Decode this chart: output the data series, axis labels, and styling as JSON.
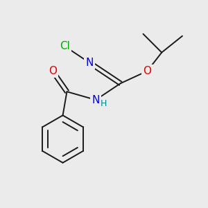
{
  "background_color": "#ebebeb",
  "bond_color": "#1a1a1a",
  "atom_colors": {
    "N": "#0000ee",
    "O": "#dd0000",
    "Cl": "#00aa00",
    "H": "#008888",
    "C": "#1a1a1a"
  },
  "font_size_atoms": 11,
  "font_size_small": 9,
  "lw": 1.4
}
